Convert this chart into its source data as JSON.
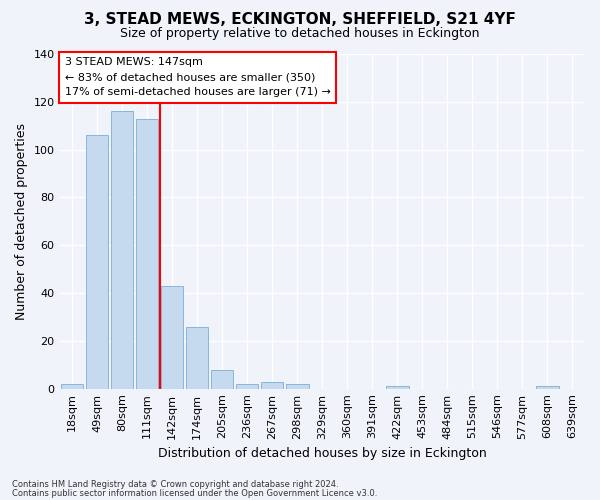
{
  "title": "3, STEAD MEWS, ECKINGTON, SHEFFIELD, S21 4YF",
  "subtitle": "Size of property relative to detached houses in Eckington",
  "xlabel": "Distribution of detached houses by size in Eckington",
  "ylabel": "Number of detached properties",
  "bar_labels": [
    "18sqm",
    "49sqm",
    "80sqm",
    "111sqm",
    "142sqm",
    "174sqm",
    "205sqm",
    "236sqm",
    "267sqm",
    "298sqm",
    "329sqm",
    "360sqm",
    "391sqm",
    "422sqm",
    "453sqm",
    "484sqm",
    "515sqm",
    "546sqm",
    "577sqm",
    "608sqm",
    "639sqm"
  ],
  "bar_values": [
    2,
    106,
    116,
    113,
    43,
    26,
    8,
    2,
    3,
    2,
    0,
    0,
    0,
    1,
    0,
    0,
    0,
    0,
    0,
    1,
    0
  ],
  "normal_bar_color": "#c5d9ef",
  "normal_bar_edge": "#7bafd4",
  "ylim": [
    0,
    140
  ],
  "yticks": [
    0,
    20,
    40,
    60,
    80,
    100,
    120,
    140
  ],
  "red_line_x": 3.5,
  "annotation_box_text": "3 STEAD MEWS: 147sqm\n← 83% of detached houses are smaller (350)\n17% of semi-detached houses are larger (71) →",
  "footnote1": "Contains HM Land Registry data © Crown copyright and database right 2024.",
  "footnote2": "Contains public sector information licensed under the Open Government Licence v3.0.",
  "background_color": "#f0f4fa",
  "plot_bg_color": "#f0f4fa",
  "grid_color": "#ffffff",
  "title_fontsize": 11,
  "subtitle_fontsize": 9,
  "axis_label_fontsize": 9,
  "tick_fontsize": 8,
  "footnote_fontsize": 6
}
